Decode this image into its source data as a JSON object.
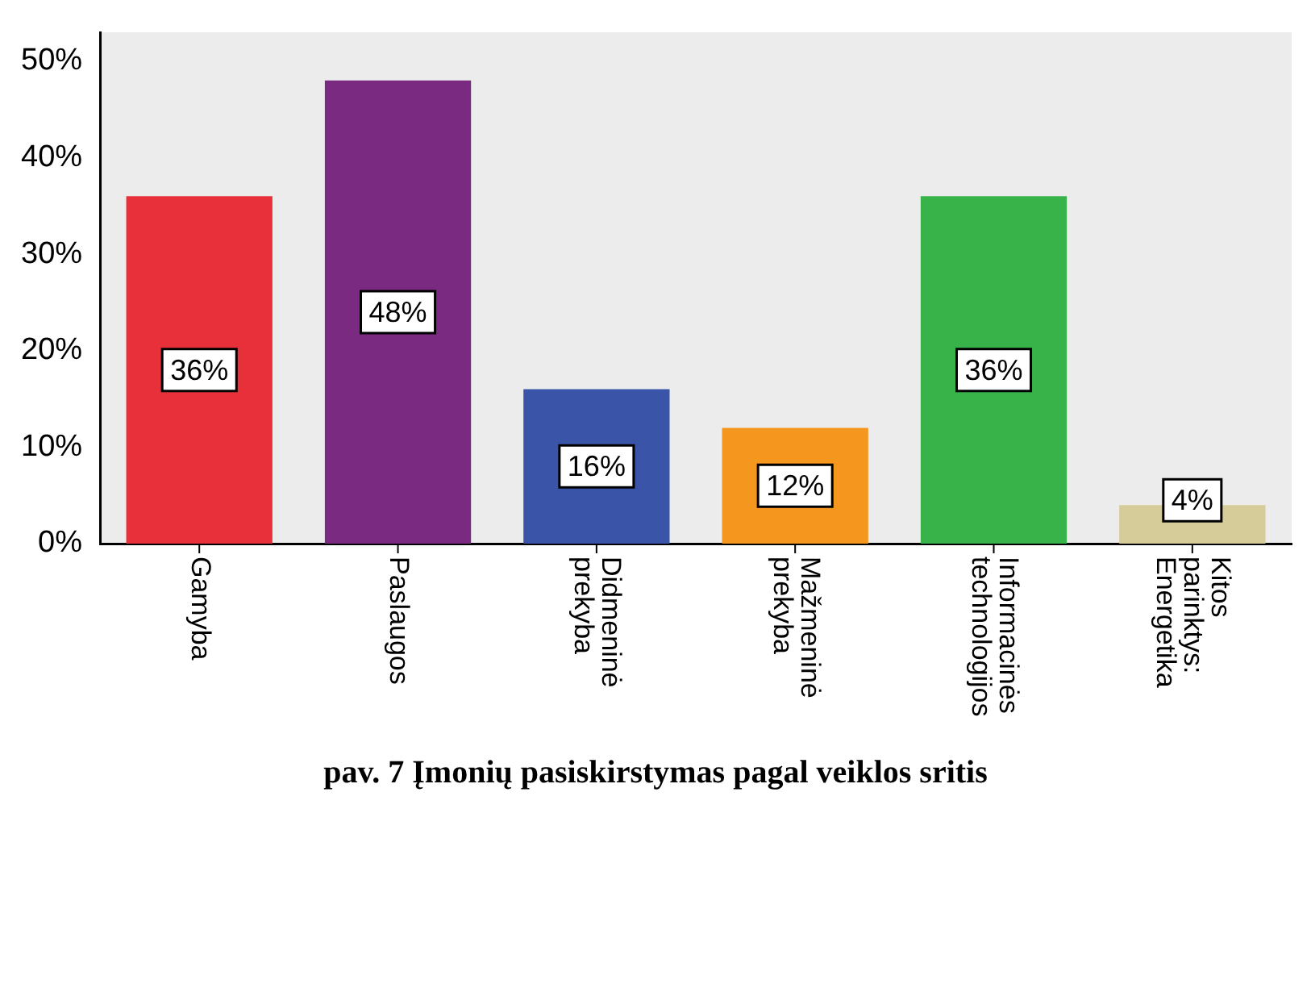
{
  "chart_data": {
    "type": "bar",
    "categories": [
      "Gamyba",
      "Paslaugos",
      "Didmeninė prekyba",
      "Mažmeninė prekyba",
      "Informacinės technologijos",
      "Kitos parinktys: Energetika"
    ],
    "values": [
      36,
      48,
      16,
      12,
      36,
      4
    ],
    "colors": [
      "#e8303a",
      "#7a2a80",
      "#3a55a8",
      "#f5961e",
      "#38b34a",
      "#d6cc99"
    ],
    "value_labels": [
      "36%",
      "48%",
      "16%",
      "12%",
      "36%",
      "4%"
    ],
    "ylim": [
      0,
      53
    ],
    "yticks": [
      {
        "value": 0,
        "label": "0%"
      },
      {
        "value": 10,
        "label": "10%"
      },
      {
        "value": 20,
        "label": "20%"
      },
      {
        "value": 30,
        "label": "30%"
      },
      {
        "value": 40,
        "label": "40%"
      },
      {
        "value": 50,
        "label": "50%"
      }
    ],
    "grid": false,
    "legend": false,
    "annotations": [
      "pav. 7 Įmonių pasiskirstymas pagal veiklos sritis"
    ]
  }
}
